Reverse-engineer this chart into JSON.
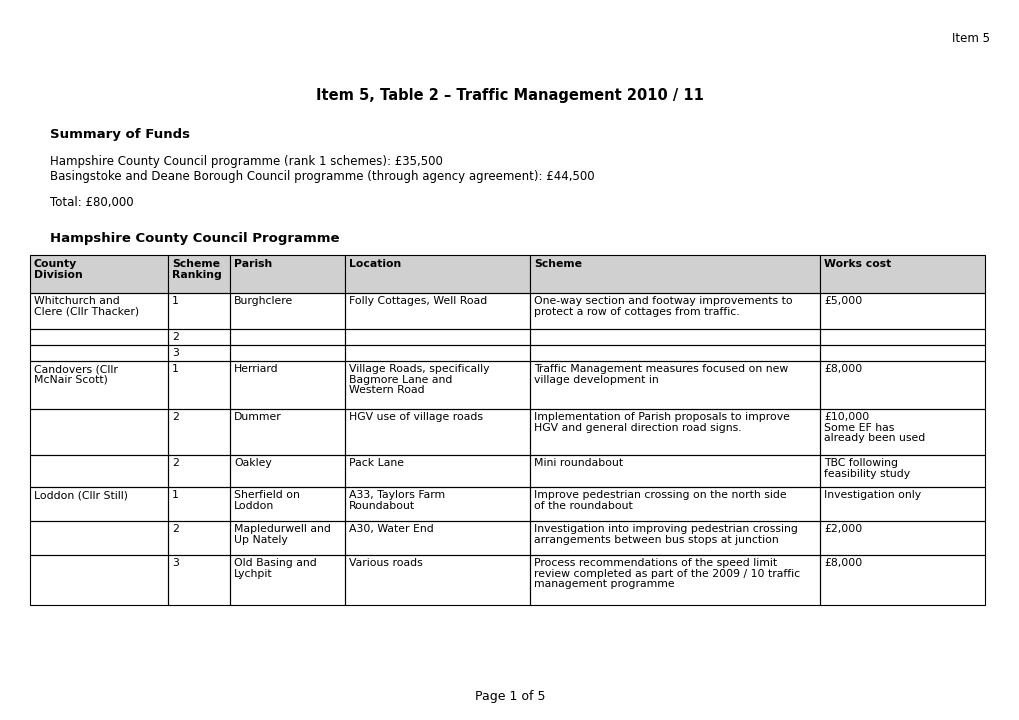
{
  "page_header": "Item 5",
  "title": "Item 5, Table 2 – Traffic Management 2010 / 11",
  "section_header": "Summary of Funds",
  "summary_lines": [
    "Hampshire County Council programme (rank 1 schemes): £35,500",
    "Basingstoke and Deane Borough Council programme (through agency agreement): £44,500"
  ],
  "total_line": "Total: £80,000",
  "table_section_header": "Hampshire County Council Programme",
  "col_headers": [
    "County\nDivision",
    "Scheme\nRanking",
    "Parish",
    "Location",
    "Scheme",
    "Works cost"
  ],
  "rows": [
    {
      "county_division": "Whitchurch and\nClere (Cllr Thacker)",
      "scheme_ranking": "1",
      "parish": "Burghclere",
      "location": "Folly Cottages, Well Road",
      "scheme": "One-way section and footway improvements to\nprotect a row of cottages from traffic.",
      "works_cost": "£5,000"
    },
    {
      "county_division": "",
      "scheme_ranking": "2",
      "parish": "",
      "location": "",
      "scheme": "",
      "works_cost": ""
    },
    {
      "county_division": "",
      "scheme_ranking": "3",
      "parish": "",
      "location": "",
      "scheme": "",
      "works_cost": ""
    },
    {
      "county_division": "Candovers (Cllr\nMcNair Scott)",
      "scheme_ranking": "1",
      "parish": "Herriard",
      "location": "Village Roads, specifically\nBagmore Lane and\nWestern Road",
      "scheme": "Traffic Management measures focused on new\nvillage development in",
      "works_cost": "£8,000"
    },
    {
      "county_division": "",
      "scheme_ranking": "2",
      "parish": "Dummer",
      "location": "HGV use of village roads",
      "scheme": "Implementation of Parish proposals to improve\nHGV and general direction road signs.",
      "works_cost": "£10,000\nSome EF has\nalready been used"
    },
    {
      "county_division": "",
      "scheme_ranking": "2",
      "parish": "Oakley",
      "location": "Pack Lane",
      "scheme": "Mini roundabout",
      "works_cost": "TBC following\nfeasibility study"
    },
    {
      "county_division": "Loddon (Cllr Still)",
      "scheme_ranking": "1",
      "parish": "Sherfield on\nLoddon",
      "location": "A33, Taylors Farm\nRoundabout",
      "scheme": "Improve pedestrian crossing on the north side\nof the roundabout",
      "works_cost": "Investigation only"
    },
    {
      "county_division": "",
      "scheme_ranking": "2",
      "parish": "Mapledurwell and\nUp Nately",
      "location": "A30, Water End",
      "scheme": "Investigation into improving pedestrian crossing\narrangements between bus stops at junction",
      "works_cost": "£2,000"
    },
    {
      "county_division": "",
      "scheme_ranking": "3",
      "parish": "Old Basing and\nLychpit",
      "location": "Various roads",
      "scheme": "Process recommendations of the speed limit\nreview completed as part of the 2009 / 10 traffic\nmanagement programme",
      "works_cost": "£8,000"
    }
  ],
  "page_footer": "Page 1 of 5",
  "bg_color": "#ffffff",
  "text_color": "#000000",
  "header_fill": "#d0d0d0"
}
